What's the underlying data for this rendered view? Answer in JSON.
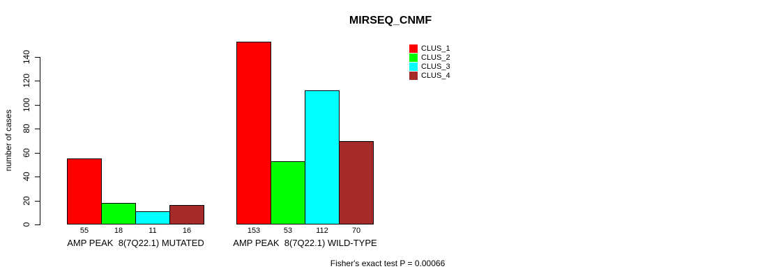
{
  "chart_data": {
    "type": "bar",
    "title": "MIRSEQ_CNMF",
    "ylabel": "number of cases",
    "xlabel": "",
    "yticks": [
      0,
      20,
      40,
      60,
      80,
      100,
      120,
      140
    ],
    "ylim": [
      0,
      155
    ],
    "grid": false,
    "legend_position": "top-right",
    "categories": [
      "AMP PEAK  8(7Q22.1) MUTATED",
      "AMP PEAK  8(7Q22.1) WILD-TYPE"
    ],
    "series": [
      {
        "name": "CLUS_1",
        "color": "#FF0000",
        "values": [
          55,
          153
        ]
      },
      {
        "name": "CLUS_2",
        "color": "#00FF00",
        "values": [
          18,
          53
        ]
      },
      {
        "name": "CLUS_3",
        "color": "#00FFFF",
        "values": [
          11,
          112
        ]
      },
      {
        "name": "CLUS_4",
        "color": "#A52A2A",
        "values": [
          16,
          70
        ]
      }
    ],
    "annotation": "Fisher's exact test P = 0.00066"
  }
}
